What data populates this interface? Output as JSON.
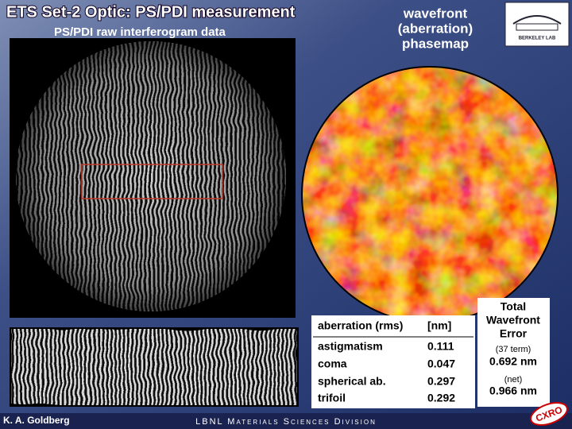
{
  "header": {
    "title": "ETS Set-2 Optic:  PS/PDI measurement",
    "subtitle": "PS/PDI raw interferogram data"
  },
  "phasemap_label": [
    "wavefront",
    "(aberration)",
    "phasemap"
  ],
  "logo": "BERKELEY LAB",
  "table": {
    "header": [
      "aberration (rms)",
      "[nm]"
    ],
    "rows": [
      [
        "astigmatism",
        "0.111"
      ],
      [
        "coma",
        "0.047"
      ],
      [
        "spherical ab.",
        "0.297"
      ],
      [
        "trifoil",
        "0.292"
      ]
    ]
  },
  "total": {
    "title": [
      "Total",
      "Wavefront",
      "Error"
    ],
    "term_label": "(37 term)",
    "term_value": "0.692 nm",
    "net_label": "(net)",
    "net_value": "0.966 nm"
  },
  "footer": {
    "author": "K. A. Goldberg",
    "division": "LBNL Materials Sciences Division",
    "badge": "CXRO"
  }
}
